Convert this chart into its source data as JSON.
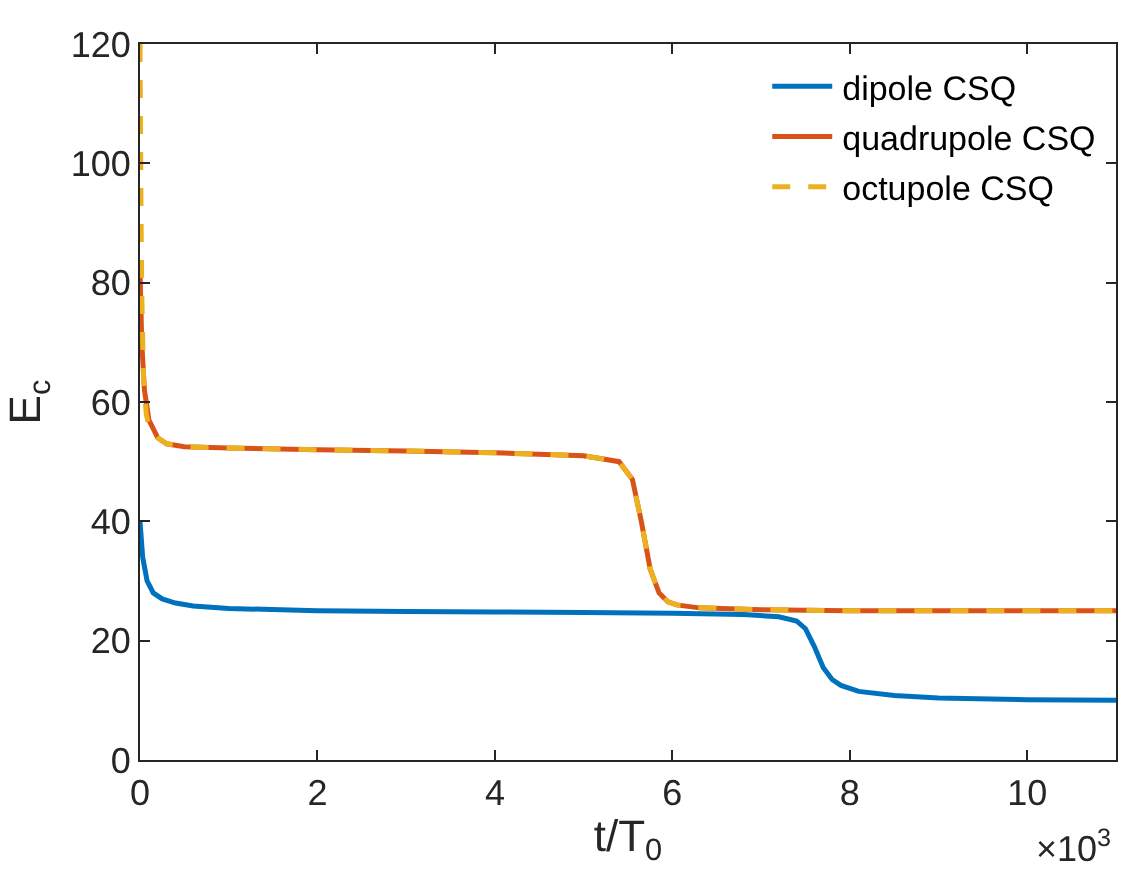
{
  "chart_data": {
    "type": "line",
    "xlabel": "t/T$_{0}$",
    "ylabel": "E$_{c}$",
    "xlim": [
      0,
      11
    ],
    "xticks": [
      0,
      2,
      4,
      6,
      8,
      10
    ],
    "ylim": [
      0,
      120
    ],
    "yticks": [
      0,
      20,
      40,
      60,
      80,
      100,
      120
    ],
    "annotations": [
      "×10$^{3}$"
    ],
    "legend": "top right",
    "series": [
      {
        "name": "dipole CSQ",
        "color": "#0072bd",
        "line_style": "solid",
        "x": [
          0,
          0.03,
          0.08,
          0.15,
          0.25,
          0.4,
          0.6,
          1,
          2,
          3,
          4,
          5,
          6,
          6.8,
          7.2,
          7.4,
          7.5,
          7.6,
          7.7,
          7.8,
          7.9,
          8.1,
          8.5,
          9,
          10,
          11
        ],
        "values": [
          40,
          34,
          30,
          28,
          27,
          26.3,
          25.8,
          25.4,
          25,
          24.9,
          24.8,
          24.7,
          24.6,
          24.4,
          24,
          23.3,
          22,
          19,
          15.5,
          13.5,
          12.5,
          11.5,
          10.8,
          10.4,
          10.1,
          10
        ]
      },
      {
        "name": "quadrupole CSQ",
        "color": "#d95319",
        "line_style": "solid",
        "x": [
          0,
          0.02,
          0.05,
          0.1,
          0.2,
          0.3,
          0.5,
          1,
          2,
          3,
          4,
          5,
          5.4,
          5.55,
          5.65,
          5.75,
          5.85,
          5.95,
          6.05,
          6.3,
          7,
          8,
          9,
          10,
          11
        ],
        "values": [
          82,
          70,
          62,
          57,
          54,
          53,
          52.5,
          52.3,
          52,
          51.8,
          51.5,
          51,
          50,
          47,
          40,
          32,
          28,
          26.5,
          26,
          25.5,
          25.2,
          25,
          25,
          25,
          25
        ]
      },
      {
        "name": "octupole CSQ",
        "color": "#edb120",
        "line_style": "dashed",
        "x": [
          0,
          0.01,
          0.02,
          0.04,
          0.07,
          0.1,
          0.2,
          0.3,
          0.5,
          1,
          2,
          3,
          4,
          5,
          5.4,
          5.55,
          5.65,
          5.75,
          5.85,
          5.95,
          6.05,
          6.3,
          7,
          8,
          9,
          10,
          11
        ],
        "values": [
          120,
          95,
          78,
          64,
          58,
          56,
          54,
          53,
          52.5,
          52.3,
          52,
          51.8,
          51.5,
          51,
          50,
          47,
          40,
          32,
          28,
          26.5,
          26,
          25.5,
          25.2,
          25,
          25,
          25,
          25
        ]
      }
    ]
  }
}
